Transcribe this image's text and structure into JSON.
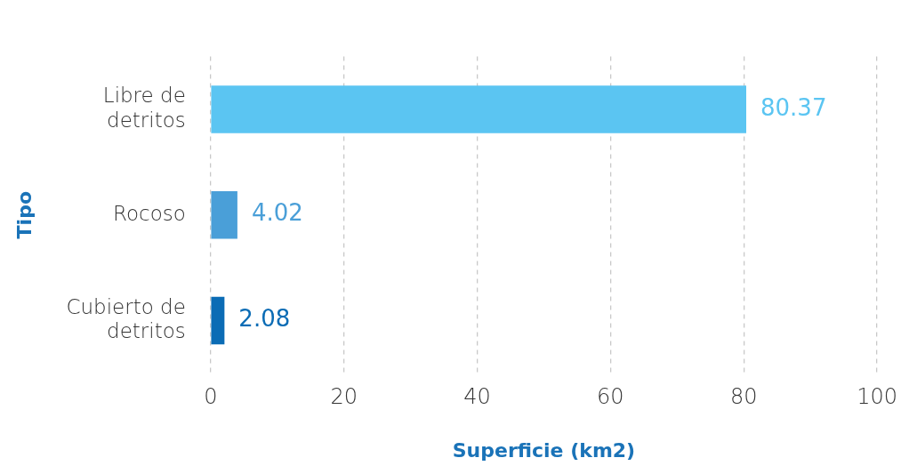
{
  "chart_data": {
    "type": "bar",
    "orientation": "horizontal",
    "xlabel": "Superficie (km2)",
    "ylabel": "Tipo",
    "categories": [
      "Libre de detritos",
      "Rocoso",
      "Cubierto de detritos"
    ],
    "values": [
      80.37,
      4.02,
      2.08
    ],
    "colors": [
      "#5bc5f2",
      "#4a9fd8",
      "#0b6cb5"
    ],
    "xlim": [
      0,
      100
    ],
    "xticks": [
      0,
      20,
      40,
      60,
      80,
      100
    ],
    "grid": "x",
    "data_labels": true,
    "legend": false
  }
}
